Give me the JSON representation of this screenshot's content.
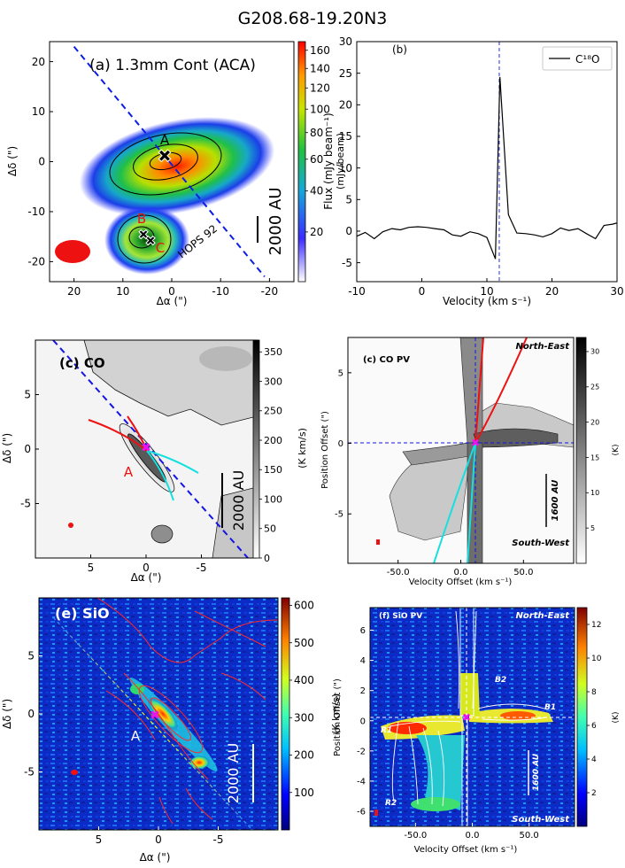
{
  "figure_title": "G208.68-19.20N3",
  "chart_data": [
    {
      "panel": "a",
      "type": "heatmap",
      "title": "(a) 1.3mm Cont (ACA)",
      "xlabel": "Δα (\")",
      "ylabel": "Δδ (\")",
      "xlim": [
        25,
        -25
      ],
      "ylim": [
        -24,
        24
      ],
      "xticks": [
        20,
        10,
        0,
        -10,
        -20
      ],
      "yticks": [
        20,
        10,
        0,
        -10,
        -20
      ],
      "colorbar": {
        "label": "(mJy/beam)",
        "ticks": [
          20,
          40,
          60,
          80,
          100,
          120,
          140,
          160
        ],
        "range": [
          5,
          170
        ],
        "scale": "sqrt"
      },
      "sources": [
        {
          "name": "A",
          "x": 0,
          "y": 0
        },
        {
          "name": "B",
          "x": -4,
          "y": -14
        },
        {
          "name": "C",
          "x": -3,
          "y": -17
        }
      ],
      "annotations": [
        "HOPS 92"
      ],
      "scale_bar": "2000 AU",
      "outflow_axis": {
        "from": [
          20,
          23
        ],
        "to": [
          -19,
          -23
        ]
      }
    },
    {
      "panel": "b",
      "type": "line",
      "title": "(b)",
      "xlabel": "Velocity  (km s⁻¹)",
      "ylabel": "Flux (mJy beam⁻¹)",
      "xlim": [
        -10,
        30
      ],
      "ylim": [
        -8,
        30
      ],
      "xticks": [
        -10,
        0,
        10,
        20,
        30
      ],
      "yticks": [
        -5,
        0,
        5,
        10,
        15,
        20,
        25,
        30
      ],
      "legend": "C¹⁸O",
      "legend_position": "top-right",
      "systemic_velocity": 11.9,
      "series": [
        {
          "name": "C18O",
          "x": [
            -10,
            -8.7,
            -7.3,
            -6,
            -4.6,
            -3.3,
            -2,
            -0.6,
            0.7,
            2,
            3.4,
            4.7,
            6,
            7.4,
            8.7,
            10,
            11.3,
            12,
            13.3,
            14.6,
            16,
            17.3,
            18.6,
            20,
            21.3,
            22.6,
            24,
            25.3,
            26.7,
            28,
            29.3,
            30
          ],
          "y": [
            -0.8,
            -0.2,
            -1.2,
            -0.1,
            0.4,
            0.2,
            0.6,
            0.7,
            0.6,
            0.4,
            0.2,
            -0.6,
            -0.8,
            -0.1,
            -0.4,
            -1.0,
            -4.4,
            24.4,
            2.6,
            -0.3,
            -0.4,
            -0.6,
            -0.9,
            -0.4,
            0.5,
            0.1,
            0.4,
            -0.4,
            -1.2,
            0.9,
            1.1,
            1.3
          ]
        }
      ]
    },
    {
      "panel": "c",
      "type": "heatmap",
      "title": "(c) CO",
      "xlabel": "Δα (\")",
      "ylabel": "Δδ (\")",
      "xlim": [
        10,
        -10
      ],
      "ylim": [
        -10,
        10
      ],
      "xticks": [
        5,
        0,
        -5
      ],
      "yticks": [
        5,
        0,
        -5
      ],
      "colorbar": {
        "label": "(K km/s)",
        "ticks": [
          0,
          50,
          100,
          150,
          200,
          250,
          300,
          350
        ]
      },
      "sources": [
        {
          "name": "A",
          "x": 0,
          "y": 0
        }
      ],
      "scale_bar": "2000 AU"
    },
    {
      "panel": "d",
      "type": "heatmap",
      "title": "(c) CO PV",
      "xlabel": "Velocity Offset (km s⁻¹)",
      "ylabel": "Position Offset (\")",
      "xlim": [
        -90,
        90
      ],
      "ylim": [
        -8.5,
        7.5
      ],
      "xticks": [
        -50.0,
        0.0,
        50.0
      ],
      "yticks": [
        5,
        0,
        -5
      ],
      "colorbar": {
        "label": "(K)",
        "ticks": [
          5,
          10,
          15,
          20,
          25,
          30
        ]
      },
      "quadrant_labels": {
        "top": "North-East",
        "bottom": "South-West"
      },
      "scale_bar": "1600 AU"
    },
    {
      "panel": "e",
      "type": "heatmap",
      "title": "(e) SiO",
      "xlabel": "Δα (\")",
      "ylabel": "Δδ (\")",
      "xlim": [
        10,
        -10
      ],
      "ylim": [
        -10,
        10
      ],
      "xticks": [
        5,
        0,
        -5
      ],
      "yticks": [
        5,
        0,
        -5
      ],
      "colorbar": {
        "label": "(K km/s)",
        "ticks": [
          100,
          200,
          300,
          400,
          500,
          600
        ]
      },
      "sources": [
        {
          "name": "A",
          "x": 0,
          "y": 0
        }
      ],
      "scale_bar": "2000 AU"
    },
    {
      "panel": "f",
      "type": "heatmap",
      "title": "(f) SiO PV",
      "xlabel": "Velocity Offset (km s⁻¹)",
      "ylabel": "Position Offset (\")",
      "xlim": [
        -90,
        90
      ],
      "ylim": [
        -7,
        7.5
      ],
      "xticks": [
        -50.0,
        0.0,
        50.0
      ],
      "yticks": [
        6,
        4,
        2,
        0,
        -2,
        -4,
        -6
      ],
      "colorbar": {
        "label": "(K)",
        "ticks": [
          2,
          4,
          6,
          8,
          10,
          12
        ]
      },
      "quadrant_labels": {
        "top": "North-East",
        "bottom": "South-West"
      },
      "knots": [
        {
          "name": "B1",
          "x": 55,
          "y": 0.5
        },
        {
          "name": "B2",
          "x": 8,
          "y": 2.3
        },
        {
          "name": "R1",
          "x": -70,
          "y": -1.2
        },
        {
          "name": "R2",
          "x": -62,
          "y": -5.9
        }
      ],
      "scale_bar": "1600 AU"
    }
  ]
}
